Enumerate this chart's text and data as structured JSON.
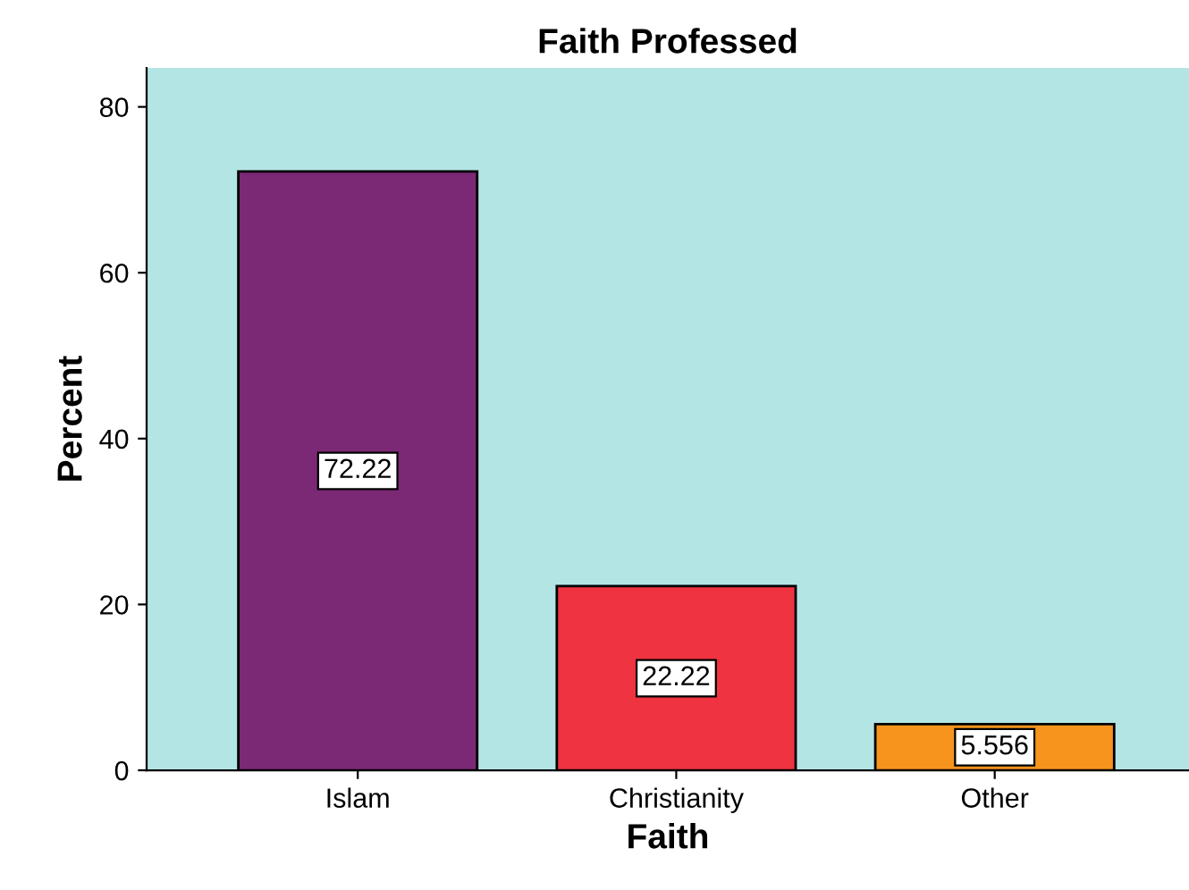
{
  "chart_data": {
    "type": "bar",
    "title": "Faith Professed",
    "xlabel": "Faith",
    "ylabel": "Percent",
    "categories": [
      "Islam",
      "Christianity",
      "Other"
    ],
    "values": [
      72.22,
      22.22,
      5.556
    ],
    "colors": [
      "#7b2875",
      "#ef3340",
      "#f7941d"
    ],
    "ylim": [
      0,
      84.7
    ],
    "yticks": [
      0,
      20,
      40,
      60,
      80
    ],
    "grid": false,
    "legend": false,
    "data_labels": true
  }
}
